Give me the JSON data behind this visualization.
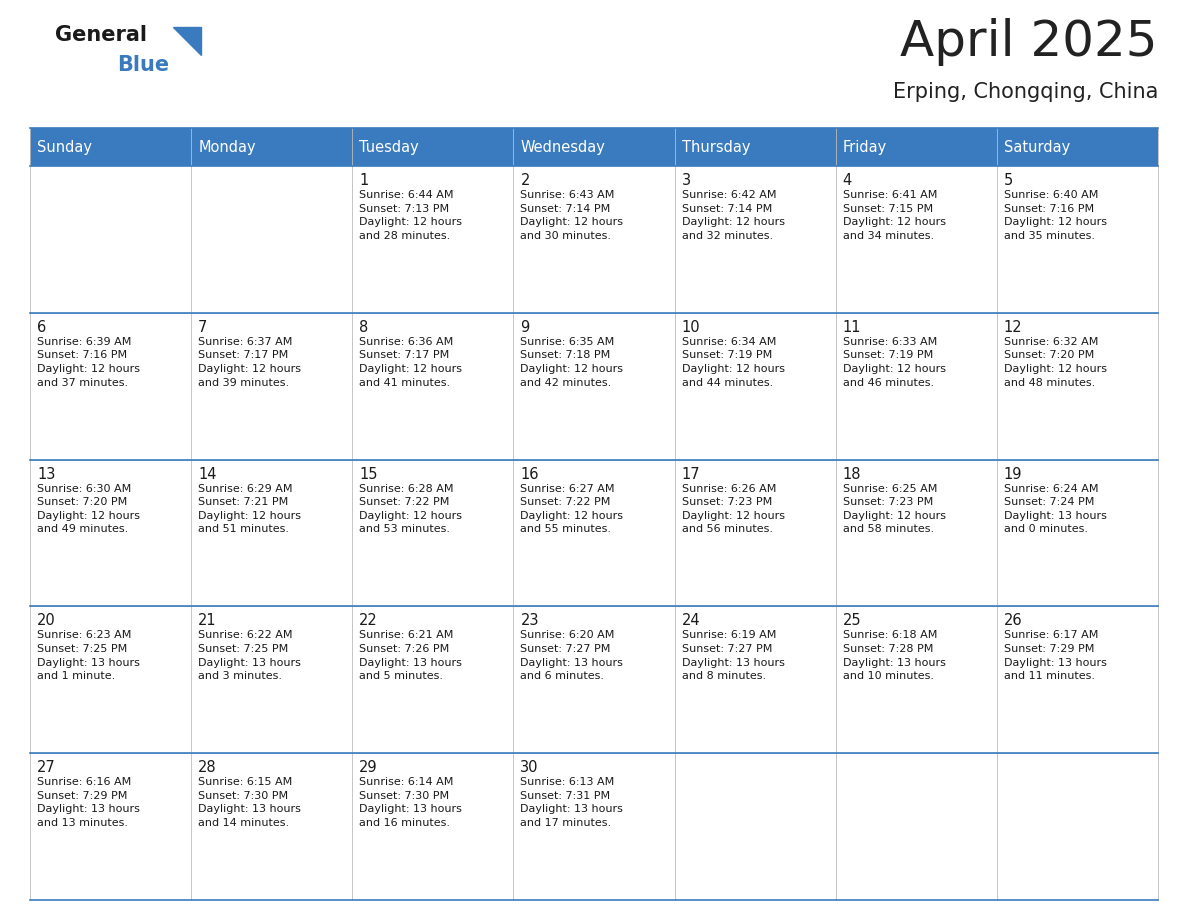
{
  "title": "April 2025",
  "subtitle": "Erping, Chongqing, China",
  "header_bg_color": "#3a7bbf",
  "header_text_color": "#ffffff",
  "cell_bg_color": "#ffffff",
  "border_color": "#3a7bbf",
  "grid_color": "#bbbbbb",
  "title_color": "#222222",
  "subtitle_color": "#222222",
  "day_names": [
    "Sunday",
    "Monday",
    "Tuesday",
    "Wednesday",
    "Thursday",
    "Friday",
    "Saturday"
  ],
  "weeks": [
    [
      {
        "day": "",
        "info": ""
      },
      {
        "day": "",
        "info": ""
      },
      {
        "day": "1",
        "info": "Sunrise: 6:44 AM\nSunset: 7:13 PM\nDaylight: 12 hours\nand 28 minutes."
      },
      {
        "day": "2",
        "info": "Sunrise: 6:43 AM\nSunset: 7:14 PM\nDaylight: 12 hours\nand 30 minutes."
      },
      {
        "day": "3",
        "info": "Sunrise: 6:42 AM\nSunset: 7:14 PM\nDaylight: 12 hours\nand 32 minutes."
      },
      {
        "day": "4",
        "info": "Sunrise: 6:41 AM\nSunset: 7:15 PM\nDaylight: 12 hours\nand 34 minutes."
      },
      {
        "day": "5",
        "info": "Sunrise: 6:40 AM\nSunset: 7:16 PM\nDaylight: 12 hours\nand 35 minutes."
      }
    ],
    [
      {
        "day": "6",
        "info": "Sunrise: 6:39 AM\nSunset: 7:16 PM\nDaylight: 12 hours\nand 37 minutes."
      },
      {
        "day": "7",
        "info": "Sunrise: 6:37 AM\nSunset: 7:17 PM\nDaylight: 12 hours\nand 39 minutes."
      },
      {
        "day": "8",
        "info": "Sunrise: 6:36 AM\nSunset: 7:17 PM\nDaylight: 12 hours\nand 41 minutes."
      },
      {
        "day": "9",
        "info": "Sunrise: 6:35 AM\nSunset: 7:18 PM\nDaylight: 12 hours\nand 42 minutes."
      },
      {
        "day": "10",
        "info": "Sunrise: 6:34 AM\nSunset: 7:19 PM\nDaylight: 12 hours\nand 44 minutes."
      },
      {
        "day": "11",
        "info": "Sunrise: 6:33 AM\nSunset: 7:19 PM\nDaylight: 12 hours\nand 46 minutes."
      },
      {
        "day": "12",
        "info": "Sunrise: 6:32 AM\nSunset: 7:20 PM\nDaylight: 12 hours\nand 48 minutes."
      }
    ],
    [
      {
        "day": "13",
        "info": "Sunrise: 6:30 AM\nSunset: 7:20 PM\nDaylight: 12 hours\nand 49 minutes."
      },
      {
        "day": "14",
        "info": "Sunrise: 6:29 AM\nSunset: 7:21 PM\nDaylight: 12 hours\nand 51 minutes."
      },
      {
        "day": "15",
        "info": "Sunrise: 6:28 AM\nSunset: 7:22 PM\nDaylight: 12 hours\nand 53 minutes."
      },
      {
        "day": "16",
        "info": "Sunrise: 6:27 AM\nSunset: 7:22 PM\nDaylight: 12 hours\nand 55 minutes."
      },
      {
        "day": "17",
        "info": "Sunrise: 6:26 AM\nSunset: 7:23 PM\nDaylight: 12 hours\nand 56 minutes."
      },
      {
        "day": "18",
        "info": "Sunrise: 6:25 AM\nSunset: 7:23 PM\nDaylight: 12 hours\nand 58 minutes."
      },
      {
        "day": "19",
        "info": "Sunrise: 6:24 AM\nSunset: 7:24 PM\nDaylight: 13 hours\nand 0 minutes."
      }
    ],
    [
      {
        "day": "20",
        "info": "Sunrise: 6:23 AM\nSunset: 7:25 PM\nDaylight: 13 hours\nand 1 minute."
      },
      {
        "day": "21",
        "info": "Sunrise: 6:22 AM\nSunset: 7:25 PM\nDaylight: 13 hours\nand 3 minutes."
      },
      {
        "day": "22",
        "info": "Sunrise: 6:21 AM\nSunset: 7:26 PM\nDaylight: 13 hours\nand 5 minutes."
      },
      {
        "day": "23",
        "info": "Sunrise: 6:20 AM\nSunset: 7:27 PM\nDaylight: 13 hours\nand 6 minutes."
      },
      {
        "day": "24",
        "info": "Sunrise: 6:19 AM\nSunset: 7:27 PM\nDaylight: 13 hours\nand 8 minutes."
      },
      {
        "day": "25",
        "info": "Sunrise: 6:18 AM\nSunset: 7:28 PM\nDaylight: 13 hours\nand 10 minutes."
      },
      {
        "day": "26",
        "info": "Sunrise: 6:17 AM\nSunset: 7:29 PM\nDaylight: 13 hours\nand 11 minutes."
      }
    ],
    [
      {
        "day": "27",
        "info": "Sunrise: 6:16 AM\nSunset: 7:29 PM\nDaylight: 13 hours\nand 13 minutes."
      },
      {
        "day": "28",
        "info": "Sunrise: 6:15 AM\nSunset: 7:30 PM\nDaylight: 13 hours\nand 14 minutes."
      },
      {
        "day": "29",
        "info": "Sunrise: 6:14 AM\nSunset: 7:30 PM\nDaylight: 13 hours\nand 16 minutes."
      },
      {
        "day": "30",
        "info": "Sunrise: 6:13 AM\nSunset: 7:31 PM\nDaylight: 13 hours\nand 17 minutes."
      },
      {
        "day": "",
        "info": ""
      },
      {
        "day": "",
        "info": ""
      },
      {
        "day": "",
        "info": ""
      }
    ]
  ],
  "fig_width": 11.88,
  "fig_height": 9.18,
  "dpi": 100
}
